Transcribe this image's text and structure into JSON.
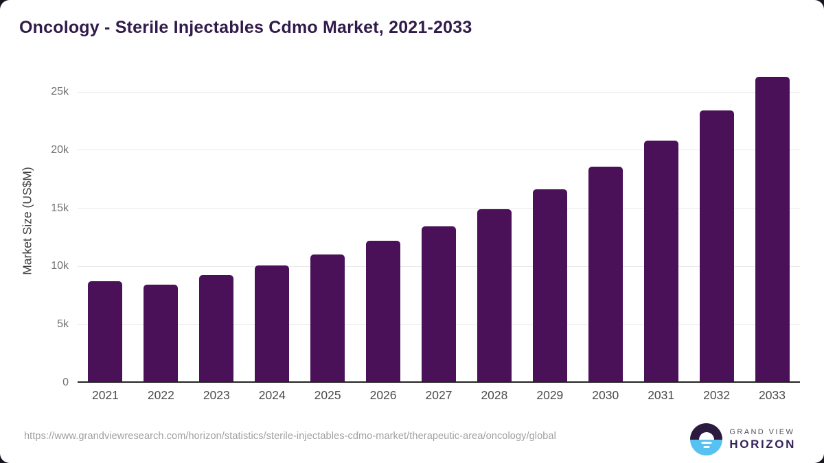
{
  "chart_data": {
    "type": "bar",
    "title": "Oncology - Sterile Injectables Cdmo Market, 2021-2033",
    "xlabel": "",
    "ylabel": "Market Size (US$M)",
    "categories": [
      "2021",
      "2022",
      "2023",
      "2024",
      "2025",
      "2026",
      "2027",
      "2028",
      "2029",
      "2030",
      "2031",
      "2032",
      "2033"
    ],
    "values": [
      8750,
      8460,
      9260,
      10080,
      11000,
      12200,
      13460,
      14940,
      16650,
      18580,
      20840,
      23390,
      26310
    ],
    "ylim": [
      0,
      27300
    ],
    "ytick_values": [
      0,
      5000,
      10000,
      15000,
      20000,
      25000
    ],
    "ytick_labels": [
      "0",
      "5k",
      "10k",
      "15k",
      "20k",
      "25k"
    ],
    "grid": true,
    "legend": null,
    "bar_color": "#4a1158"
  },
  "footer": {
    "source_url": "https://www.grandviewresearch.com/horizon/statistics/sterile-injectables-cdmo-market/therapeutic-area/oncology/global",
    "logo": {
      "line1": "GRAND VIEW",
      "line2": "HORIZON"
    }
  },
  "colors": {
    "bar": "#4a1158",
    "title": "#311b4a",
    "gridline": "#e9e9e9",
    "axis_line": "#222222",
    "y_tick_text": "#717171",
    "x_tick_text": "#4b4b4b",
    "url_text": "#9f9f9f",
    "logo_purple": "#2d1b3f",
    "logo_blue": "#57c2f1",
    "background": "#ffffff"
  }
}
